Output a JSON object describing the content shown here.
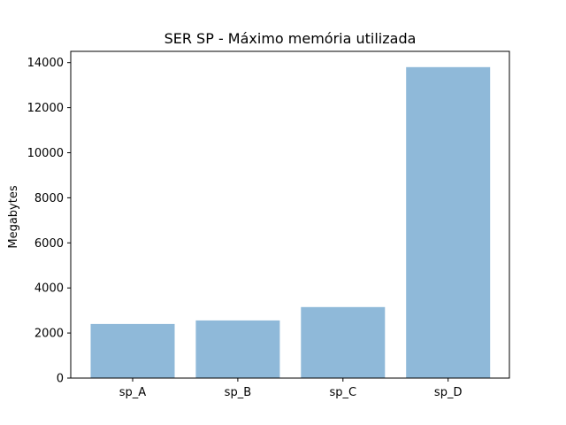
{
  "chart_data": {
    "type": "bar",
    "title": "SER SP - Máximo memória utilizada",
    "xlabel": "",
    "ylabel": "Megabytes",
    "categories": [
      "sp_A",
      "sp_B",
      "sp_C",
      "sp_D"
    ],
    "values": [
      2400,
      2560,
      3150,
      13800
    ],
    "ylim": [
      0,
      14500
    ],
    "yticks": [
      0,
      2000,
      4000,
      6000,
      8000,
      10000,
      12000,
      14000
    ],
    "grid": false,
    "bar_color": "#8fb9d9"
  }
}
